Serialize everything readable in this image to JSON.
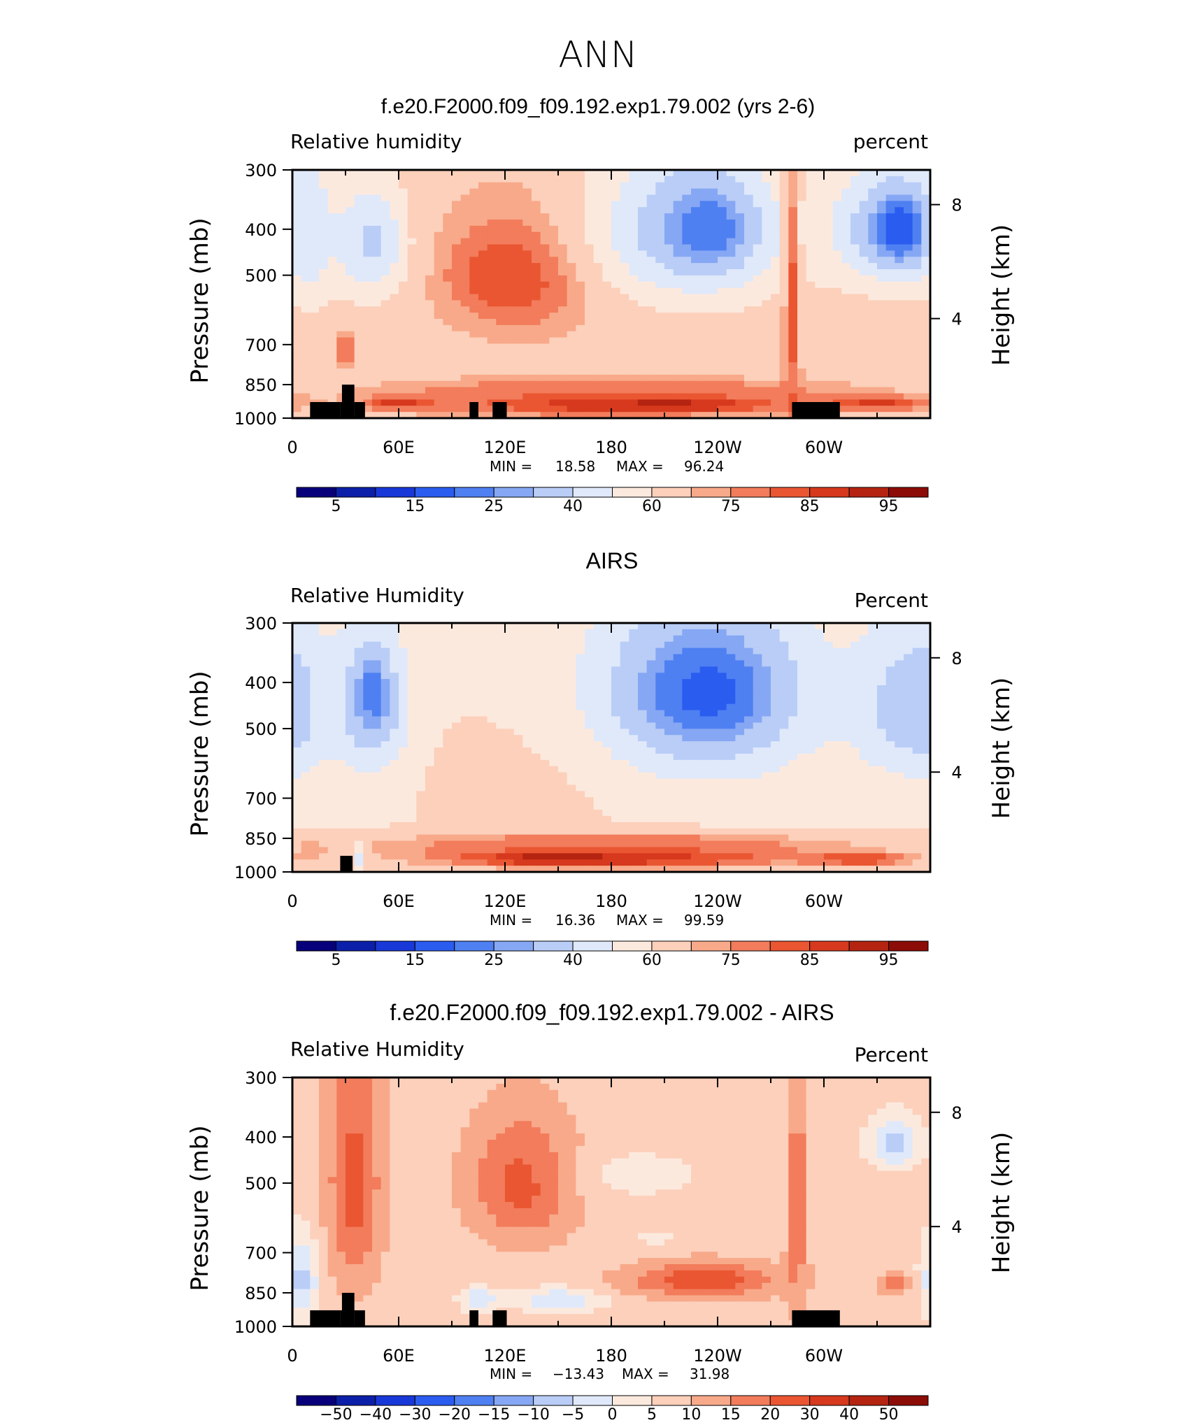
{
  "figure_title": "ANN",
  "colors": {
    "rh_palette": [
      "#08007a",
      "#0c1fa8",
      "#1838d8",
      "#2b5cf0",
      "#4f80f2",
      "#86a7f3",
      "#b9cdf7",
      "#dfe9fa",
      "#fce9de",
      "#fcd0bb",
      "#f8a98a",
      "#f27c5b",
      "#ea5632",
      "#d6391d",
      "#b42410",
      "#8c0c07"
    ],
    "diff_palette": [
      "#08007a",
      "#0c1fa8",
      "#1838d8",
      "#2b5cf0",
      "#4f80f2",
      "#86a7f3",
      "#b9cdf7",
      "#dfe9fa",
      "#fce9de",
      "#fcd0bb",
      "#f8a98a",
      "#f27c5b",
      "#ea5632",
      "#d6391d",
      "#b42410",
      "#8c0c07"
    ],
    "topography": "#000000"
  },
  "chart_data": [
    {
      "type": "heatmap",
      "title": "f.e20.F2000.f09_f09.192.exp1.79.002 (yrs 2-6)",
      "left_label": "Relative humidity",
      "right_label": "percent",
      "ylabel": "Pressure (mb)",
      "ylabel_right": "Height (km)",
      "x_ticks": [
        "0",
        "60E",
        "120E",
        "180",
        "120W",
        "60W"
      ],
      "y_ticks": [
        "300",
        "400",
        "500",
        "700",
        "850",
        "1000"
      ],
      "y_ticks_right": [
        "8",
        "4"
      ],
      "xlim": [
        0,
        360
      ],
      "ylim": [
        1000,
        300
      ],
      "y_scale": "log",
      "stats": {
        "min_label": "MIN =",
        "min": "18.58",
        "max_label": "MAX =",
        "max": "96.24"
      },
      "colorbar_levels": [
        5,
        10,
        15,
        20,
        25,
        30,
        40,
        50,
        60,
        70,
        75,
        80,
        85,
        90,
        95
      ],
      "colorbar_labels": [
        "5",
        "15",
        "25",
        "40",
        "60",
        "75",
        "85",
        "95"
      ],
      "topography": [
        [
          10,
          27,
          925
        ],
        [
          27,
          35,
          925
        ],
        [
          28,
          35,
          850
        ],
        [
          35,
          41,
          925
        ],
        [
          100,
          105,
          925
        ],
        [
          113,
          121,
          925
        ],
        [
          282,
          309,
          925
        ]
      ],
      "blobs": [
        {
          "lon": 180,
          "p": 750,
          "rx": 400,
          "ry": 500,
          "v": 66
        },
        {
          "lon": 30,
          "p": 600,
          "rx": 25,
          "ry": 400,
          "v": 64
        },
        {
          "lon": 130,
          "p": 500,
          "rx": 60,
          "ry": 220,
          "v": 80
        },
        {
          "lon": 125,
          "p": 500,
          "rx": 40,
          "ry": 120,
          "v": 85
        },
        {
          "lon": 45,
          "p": 430,
          "rx": 25,
          "ry": 150,
          "v": 38
        },
        {
          "lon": 225,
          "p": 400,
          "rx": 70,
          "ry": 200,
          "v": 32
        },
        {
          "lon": 235,
          "p": 400,
          "rx": 30,
          "ry": 100,
          "v": 20
        },
        {
          "lon": 340,
          "p": 400,
          "rx": 45,
          "ry": 150,
          "v": 28
        },
        {
          "lon": 345,
          "p": 400,
          "rx": 20,
          "ry": 80,
          "v": 15
        },
        {
          "lon": 10,
          "p": 400,
          "rx": 15,
          "ry": 200,
          "v": 45
        },
        {
          "lon": 282,
          "p": 600,
          "rx": 6,
          "ry": 600,
          "v": 82
        },
        {
          "lon": 30,
          "p": 720,
          "rx": 8,
          "ry": 100,
          "v": 80
        },
        {
          "lon": 180,
          "p": 930,
          "rx": 130,
          "ry": 80,
          "v": 88
        },
        {
          "lon": 210,
          "p": 935,
          "rx": 60,
          "ry": 35,
          "v": 94
        },
        {
          "lon": 60,
          "p": 930,
          "rx": 25,
          "ry": 40,
          "v": 88
        },
        {
          "lon": 330,
          "p": 930,
          "rx": 40,
          "ry": 40,
          "v": 88
        },
        {
          "lon": 180,
          "p": 870,
          "rx": 160,
          "ry": 60,
          "v": 80
        }
      ]
    },
    {
      "type": "heatmap",
      "title": "AIRS",
      "left_label": "Relative Humidity",
      "right_label": "Percent",
      "ylabel": "Pressure (mb)",
      "ylabel_right": "Height (km)",
      "x_ticks": [
        "0",
        "60E",
        "120E",
        "180",
        "120W",
        "60W"
      ],
      "y_ticks": [
        "300",
        "400",
        "500",
        "700",
        "850",
        "1000"
      ],
      "y_ticks_right": [
        "8",
        "4"
      ],
      "xlim": [
        0,
        360
      ],
      "ylim": [
        1000,
        300
      ],
      "y_scale": "log",
      "stats": {
        "min_label": "MIN =",
        "min": "16.36",
        "max_label": "MAX =",
        "max": "99.59"
      },
      "colorbar_levels": [
        5,
        10,
        15,
        20,
        25,
        30,
        40,
        50,
        60,
        70,
        75,
        80,
        85,
        90,
        95
      ],
      "colorbar_labels": [
        "5",
        "15",
        "25",
        "40",
        "60",
        "75",
        "85",
        "95"
      ],
      "topography": [
        [
          27,
          34,
          925
        ]
      ],
      "blobs": [
        {
          "lon": 180,
          "p": 700,
          "rx": 400,
          "ry": 500,
          "v": 58
        },
        {
          "lon": 130,
          "p": 650,
          "rx": 90,
          "ry": 300,
          "v": 63
        },
        {
          "lon": 45,
          "p": 450,
          "rx": 25,
          "ry": 200,
          "v": 30
        },
        {
          "lon": 45,
          "p": 420,
          "rx": 12,
          "ry": 80,
          "v": 20
        },
        {
          "lon": 0,
          "p": 450,
          "rx": 15,
          "ry": 200,
          "v": 45
        },
        {
          "lon": 230,
          "p": 420,
          "rx": 80,
          "ry": 250,
          "v": 30
        },
        {
          "lon": 235,
          "p": 420,
          "rx": 50,
          "ry": 150,
          "v": 18
        },
        {
          "lon": 350,
          "p": 450,
          "rx": 40,
          "ry": 200,
          "v": 32
        },
        {
          "lon": 180,
          "p": 930,
          "rx": 160,
          "ry": 80,
          "v": 90
        },
        {
          "lon": 150,
          "p": 935,
          "rx": 40,
          "ry": 30,
          "v": 97
        },
        {
          "lon": 180,
          "p": 870,
          "rx": 180,
          "ry": 60,
          "v": 80
        },
        {
          "lon": 10,
          "p": 900,
          "rx": 15,
          "ry": 80,
          "v": 72
        },
        {
          "lon": 38,
          "p": 930,
          "rx": 5,
          "ry": 80,
          "v": 45
        },
        {
          "lon": 320,
          "p": 940,
          "rx": 40,
          "ry": 40,
          "v": 86
        }
      ]
    },
    {
      "type": "heatmap",
      "title": "f.e20.F2000.f09_f09.192.exp1.79.002 - AIRS",
      "left_label": "Relative Humidity",
      "right_label": "Percent",
      "ylabel": "Pressure (mb)",
      "ylabel_right": "Height (km)",
      "x_ticks": [
        "0",
        "60E",
        "120E",
        "180",
        "120W",
        "60W"
      ],
      "y_ticks": [
        "300",
        "400",
        "500",
        "700",
        "850",
        "1000"
      ],
      "y_ticks_right": [
        "8",
        "4"
      ],
      "xlim": [
        0,
        360
      ],
      "ylim": [
        1000,
        300
      ],
      "y_scale": "log",
      "stats": {
        "min_label": "MIN =",
        "min": "−13.43",
        "max_label": "MAX =",
        "max": "31.98"
      },
      "colorbar_levels": [
        -50,
        -40,
        -30,
        -20,
        -15,
        -10,
        -5,
        0,
        5,
        10,
        15,
        20,
        30,
        40,
        50
      ],
      "colorbar_labels": [
        "−50",
        "−40",
        "−30",
        "−20",
        "−15",
        "−10",
        "−5",
        "0",
        "5",
        "10",
        "15",
        "20",
        "30",
        "40",
        "50"
      ],
      "topography": [
        [
          10,
          27,
          925
        ],
        [
          27,
          35,
          925
        ],
        [
          28,
          35,
          850
        ],
        [
          35,
          41,
          925
        ],
        [
          100,
          105,
          925
        ],
        [
          113,
          121,
          925
        ],
        [
          282,
          309,
          925
        ]
      ],
      "blobs": [
        {
          "lon": 180,
          "p": 650,
          "rx": 400,
          "ry": 500,
          "v": 7
        },
        {
          "lon": 35,
          "p": 500,
          "rx": 20,
          "ry": 400,
          "v": 22
        },
        {
          "lon": 130,
          "p": 500,
          "rx": 40,
          "ry": 200,
          "v": 22
        },
        {
          "lon": 232,
          "p": 800,
          "rx": 55,
          "ry": 90,
          "v": 24
        },
        {
          "lon": 285,
          "p": 550,
          "rx": 8,
          "ry": 500,
          "v": 18
        },
        {
          "lon": 5,
          "p": 800,
          "rx": 12,
          "ry": 200,
          "v": -7
        },
        {
          "lon": 340,
          "p": 410,
          "rx": 18,
          "ry": 60,
          "v": -8
        },
        {
          "lon": 150,
          "p": 880,
          "rx": 30,
          "ry": 60,
          "v": -5
        },
        {
          "lon": 105,
          "p": 880,
          "rx": 12,
          "ry": 60,
          "v": -6
        },
        {
          "lon": 195,
          "p": 480,
          "rx": 45,
          "ry": 70,
          "v": 3
        },
        {
          "lon": 205,
          "p": 650,
          "rx": 15,
          "ry": 25,
          "v": 2
        },
        {
          "lon": 340,
          "p": 820,
          "rx": 10,
          "ry": 60,
          "v": 18
        }
      ]
    }
  ]
}
